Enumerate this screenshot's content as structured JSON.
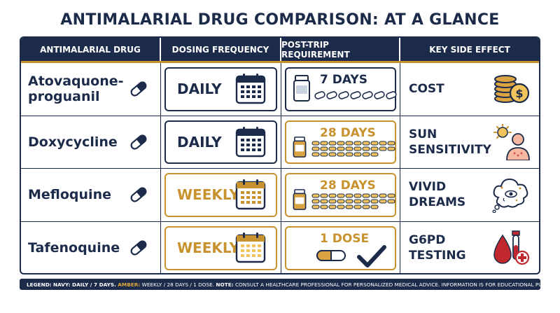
{
  "title": "ANTIMALARIAL DRUG COMPARISON: AT A GLANCE",
  "headers": [
    "ANTIMALARIAL DRUG",
    "DOSING FREQUENCY",
    "POST-TRIP REQUIREMENT",
    "KEY SIDE EFFECT"
  ],
  "colors": {
    "navy": "#1c2b4a",
    "amber": "#c8922e",
    "red": "#c0282d"
  },
  "rows": [
    {
      "drug": "Atovaquone-proguanil",
      "dosing": "DAILY",
      "dosing_color": "navy",
      "requirement": "7 DAYS",
      "requirement_color": "navy",
      "pill_count": 7,
      "effect": "COST",
      "effect_icon": "coins-dollar-icon"
    },
    {
      "drug": "Doxycycline",
      "dosing": "DAILY",
      "dosing_color": "navy",
      "requirement": "28 DAYS",
      "requirement_color": "amber",
      "pill_count": 28,
      "effect": "SUN SENSITIVITY",
      "effect_icon": "sun-person-icon"
    },
    {
      "drug": "Mefloquine",
      "dosing": "WEEKLY",
      "dosing_color": "amber",
      "requirement": "28 DAYS",
      "requirement_color": "amber",
      "pill_count": 28,
      "effect": "VIVID DREAMS",
      "effect_icon": "dream-cloud-icon"
    },
    {
      "drug": "Tafenoquine",
      "dosing": "WEEKLY",
      "dosing_color": "amber",
      "requirement": "1 DOSE",
      "requirement_color": "amber",
      "pill_count": 1,
      "effect": "G6PD TESTING",
      "effect_icon": "blood-test-icon"
    }
  ],
  "legend": {
    "label": "LEGEND:",
    "navy_part": "NAVY: DAILY / 7 DAYS.",
    "amber_label": "AMBER:",
    "amber_part": "WEEKLY / 28 DAYS / 1 DOSE.",
    "note_label": "NOTE:",
    "note_text": "CONSULT A HEALTHCARE PROFESSIONAL FOR PERSONALIZED MEDICAL ADVICE. INFORMATION IS FOR EDUCATIONAL PURPOSES ONLY."
  }
}
